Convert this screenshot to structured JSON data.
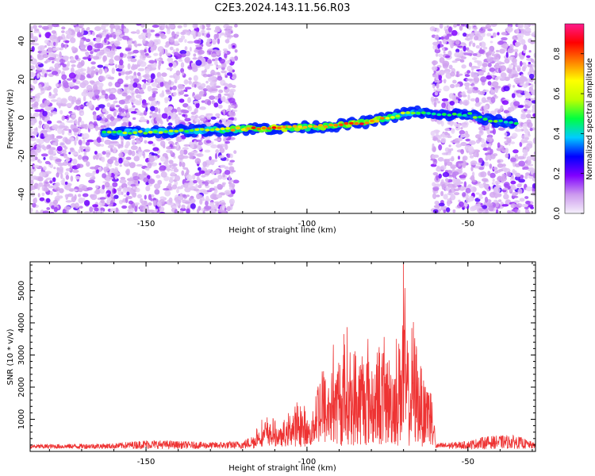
{
  "title": "C2E3.2024.143.11.56.R03",
  "chart_data": [
    {
      "type": "heatmap",
      "xlabel": "Height of straight line (km)",
      "ylabel": "Frequency (Hz)",
      "xlim": [
        -186,
        -29
      ],
      "ylim": [
        -50,
        49
      ],
      "x_ticks": [
        -150,
        -100,
        -50
      ],
      "y_ticks": [
        -40,
        -20,
        0,
        20,
        40
      ],
      "colorbar": {
        "label": "Normalized spectral amplitude",
        "range": [
          0,
          0.95
        ],
        "ticks": [
          0.0,
          0.2,
          0.4,
          0.6,
          0.8
        ],
        "colormap": [
          "#f5f0fb",
          "#cc99ee",
          "#8000ff",
          "#0000ff",
          "#00ccff",
          "#00ff40",
          "#c0ff00",
          "#ffff00",
          "#ff8000",
          "#ff0000",
          "#ff1a8c"
        ]
      },
      "ridge": {
        "x": [
          -163,
          -150,
          -140,
          -130,
          -120,
          -110,
          -100,
          -90,
          -80,
          -70,
          -65,
          -60,
          -50,
          -45,
          -40,
          -35
        ],
        "y": [
          -8,
          -7.5,
          -7,
          -6.5,
          -6,
          -5.5,
          -5,
          -4,
          -2,
          2,
          3,
          1,
          2,
          -1,
          -2,
          -3
        ],
        "amplitude": [
          0.55,
          0.6,
          0.55,
          0.6,
          0.8,
          0.9,
          0.75,
          0.8,
          0.85,
          0.6,
          0.5,
          0.45,
          0.5,
          0.55,
          0.5,
          0.45
        ]
      },
      "noise_band_x": [
        [
          -186,
          -122
        ],
        [
          -61,
          -29
        ]
      ]
    },
    {
      "type": "line",
      "xlabel": "Height of straight line (km)",
      "ylabel": "SNR (10 * v/v)",
      "xlim": [
        -186,
        -29
      ],
      "ylim": [
        0,
        5900
      ],
      "x_ticks": [
        -150,
        -100,
        -50
      ],
      "y_ticks": [
        1000,
        2000,
        3000,
        4000,
        5000
      ],
      "line_color": "#ee3333",
      "envelope": {
        "x": [
          -186,
          -160,
          -150,
          -140,
          -130,
          -120,
          -116,
          -112,
          -108,
          -105,
          -102,
          -99,
          -96,
          -94,
          -92,
          -90,
          -88,
          -86,
          -84,
          -82,
          -80,
          -78,
          -76,
          -74,
          -72,
          -70,
          -69,
          -68,
          -67,
          -66,
          -64,
          -62,
          -61,
          -60,
          -55,
          -50,
          -45,
          -40,
          -35,
          -29
        ],
        "y": [
          200,
          250,
          400,
          350,
          300,
          350,
          700,
          1100,
          700,
          1300,
          1700,
          900,
          3300,
          2700,
          3900,
          3200,
          4200,
          3600,
          3400,
          4100,
          3300,
          3700,
          4000,
          3100,
          3800,
          5900,
          4700,
          3200,
          4500,
          4000,
          3100,
          2800,
          2300,
          250,
          300,
          350,
          550,
          600,
          600,
          250
        ]
      },
      "peak": {
        "x": -70,
        "y": 5900
      }
    }
  ]
}
